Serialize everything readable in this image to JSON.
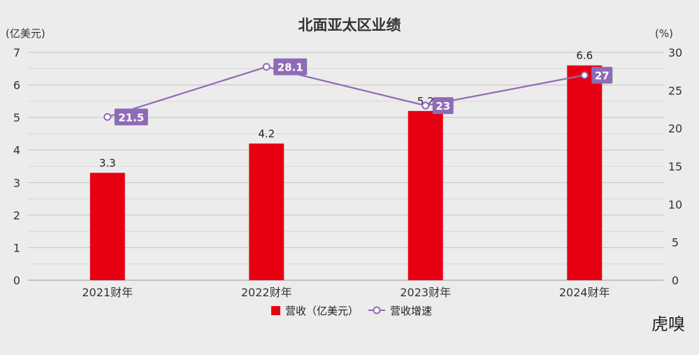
{
  "chart_data": {
    "type": "bar",
    "title": "北面亚太区业绩",
    "left_unit": "(亿美元)",
    "right_unit": "(%)",
    "categories": [
      "2021财年",
      "2022财年",
      "2023财年",
      "2024财年"
    ],
    "y_ticks": [
      "0",
      "1",
      "2",
      "3",
      "4",
      "5",
      "6",
      "7"
    ],
    "y2_ticks": [
      "0",
      "5",
      "10",
      "15",
      "20",
      "25",
      "30"
    ],
    "ylim": [
      0,
      7
    ],
    "y2lim": [
      0,
      30
    ],
    "grid": true,
    "legend_position": "bottom",
    "series": [
      {
        "name": "营收（亿美元）",
        "type": "bar",
        "axis": "left",
        "color": "#e60012",
        "values": [
          3.3,
          4.2,
          5.2,
          6.6
        ],
        "labels": [
          "3.3",
          "4.2",
          "5.2",
          "6.6"
        ]
      },
      {
        "name": "营收增速",
        "type": "line",
        "axis": "right",
        "color": "#8e6bb6",
        "label_bg": "#8e6bb6",
        "values": [
          21.5,
          28.1,
          23,
          27
        ],
        "labels": [
          "21.5",
          "28.1",
          "23",
          "27"
        ]
      }
    ]
  },
  "watermark": "虎嗅"
}
